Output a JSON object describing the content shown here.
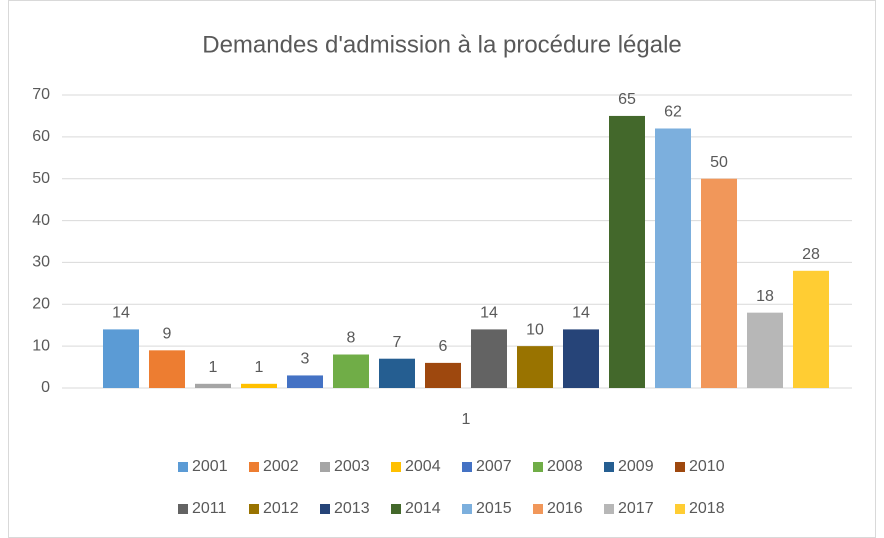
{
  "chart_data": {
    "type": "bar",
    "title": "Demandes d'admission à la procédure légale",
    "categories": [
      "1"
    ],
    "series": [
      {
        "name": "2001",
        "color": "#5b9bd5",
        "values": [
          14
        ]
      },
      {
        "name": "2002",
        "color": "#ed7d31",
        "values": [
          9
        ]
      },
      {
        "name": "2003",
        "color": "#a5a5a5",
        "values": [
          1
        ]
      },
      {
        "name": "2004",
        "color": "#ffc000",
        "values": [
          1
        ]
      },
      {
        "name": "2007",
        "color": "#4472c4",
        "values": [
          3
        ]
      },
      {
        "name": "2008",
        "color": "#70ad47",
        "values": [
          8
        ]
      },
      {
        "name": "2009",
        "color": "#255e91",
        "values": [
          7
        ]
      },
      {
        "name": "2010",
        "color": "#9e480e",
        "values": [
          6
        ]
      },
      {
        "name": "2011",
        "color": "#636363",
        "values": [
          14
        ]
      },
      {
        "name": "2012",
        "color": "#997300",
        "values": [
          10
        ]
      },
      {
        "name": "2013",
        "color": "#264478",
        "values": [
          14
        ]
      },
      {
        "name": "2014",
        "color": "#43682b",
        "values": [
          65
        ]
      },
      {
        "name": "2015",
        "color": "#7cafdd",
        "values": [
          62
        ]
      },
      {
        "name": "2016",
        "color": "#f1975a",
        "values": [
          50
        ]
      },
      {
        "name": "2017",
        "color": "#b7b7b7",
        "values": [
          18
        ]
      },
      {
        "name": "2018",
        "color": "#ffcd33",
        "values": [
          28
        ]
      }
    ],
    "ylim": [
      0,
      70
    ],
    "yticks": [
      0,
      10,
      20,
      30,
      40,
      50,
      60,
      70
    ],
    "grid": true,
    "legend": "bottom"
  }
}
